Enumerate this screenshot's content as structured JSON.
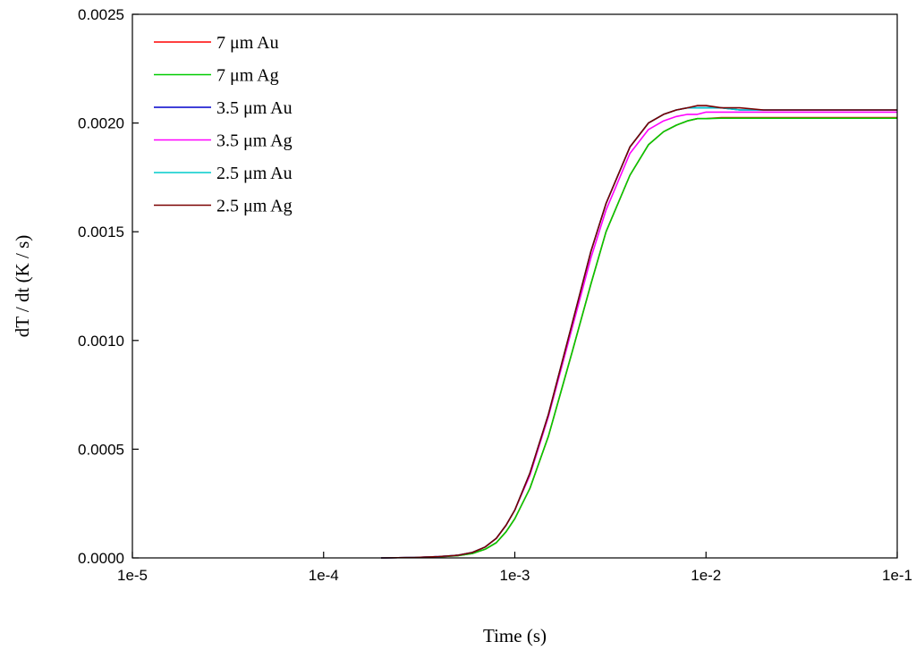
{
  "chart_data": {
    "type": "line",
    "title": "",
    "xlabel": "Time (s)",
    "ylabel": "dT / dt (K / s)",
    "xscale": "log",
    "xlim": [
      1e-05,
      0.1
    ],
    "ylim": [
      0,
      0.0025
    ],
    "x_tick_labels": [
      "1e-5",
      "1e-4",
      "1e-3",
      "1e-2",
      "1e-1"
    ],
    "y_tick_labels": [
      "0.0000",
      "0.0005",
      "0.0010",
      "0.0015",
      "0.0020",
      "0.0025"
    ],
    "grid": false,
    "legend_position": "top-left",
    "x": [
      0.0002,
      0.0003,
      0.0004,
      0.0005,
      0.0006,
      0.0007,
      0.0008,
      0.0009,
      0.001,
      0.0012,
      0.0015,
      0.002,
      0.0025,
      0.003,
      0.004,
      0.005,
      0.006,
      0.007,
      0.008,
      0.009,
      0.01,
      0.012,
      0.015,
      0.02,
      0.03,
      0.05,
      0.07,
      0.1
    ],
    "series": [
      {
        "name": "7 μm  Au",
        "color": "#ff0000",
        "values": [
          0,
          2e-06,
          5e-06,
          1e-05,
          2e-05,
          4e-05,
          7e-05,
          0.00012,
          0.00018,
          0.00032,
          0.00056,
          0.00095,
          0.00126,
          0.0015,
          0.00176,
          0.0019,
          0.00196,
          0.00199,
          0.00201,
          0.00202,
          0.00202,
          0.002025,
          0.002025,
          0.002025,
          0.002025,
          0.002025,
          0.002025,
          0.002025
        ]
      },
      {
        "name": "7 μm  Ag",
        "color": "#00cc00",
        "values": [
          0,
          2e-06,
          5e-06,
          1e-05,
          2e-05,
          4e-05,
          7e-05,
          0.00012,
          0.00018,
          0.00032,
          0.00056,
          0.00095,
          0.00126,
          0.0015,
          0.00176,
          0.0019,
          0.00196,
          0.00199,
          0.00201,
          0.00202,
          0.00202,
          0.002022,
          0.002022,
          0.002022,
          0.002022,
          0.002022,
          0.002022,
          0.002022
        ]
      },
      {
        "name": "3.5 μm  Au",
        "color": "#0000cc",
        "values": [
          0,
          2e-06,
          6e-06,
          1.2e-05,
          2.5e-05,
          5e-05,
          9e-05,
          0.00015,
          0.00022,
          0.00039,
          0.00066,
          0.00108,
          0.00141,
          0.00163,
          0.00189,
          0.002,
          0.00204,
          0.00206,
          0.00207,
          0.00207,
          0.00207,
          0.00207,
          0.00206,
          0.00206,
          0.00206,
          0.00206,
          0.00206,
          0.00206
        ]
      },
      {
        "name": "3.5 μm  Ag",
        "color": "#ff00ff",
        "values": [
          0,
          2e-06,
          6e-06,
          1.2e-05,
          2.5e-05,
          5e-05,
          9e-05,
          0.00015,
          0.00022,
          0.00038,
          0.00065,
          0.00106,
          0.00138,
          0.0016,
          0.00186,
          0.00197,
          0.00201,
          0.00203,
          0.00204,
          0.00204,
          0.00205,
          0.00205,
          0.00205,
          0.00205,
          0.00205,
          0.00205,
          0.00205,
          0.00205
        ]
      },
      {
        "name": "2.5 μm  Au",
        "color": "#00cccc",
        "values": [
          0,
          2e-06,
          6e-06,
          1.2e-05,
          2.5e-05,
          5e-05,
          9e-05,
          0.00015,
          0.00022,
          0.00039,
          0.00066,
          0.00108,
          0.00141,
          0.00163,
          0.00189,
          0.002,
          0.00204,
          0.00206,
          0.00207,
          0.00207,
          0.00207,
          0.00207,
          0.00206,
          0.00206,
          0.00206,
          0.00206,
          0.00206,
          0.00206
        ]
      },
      {
        "name": "2.5 μm  Ag",
        "color": "#7a0000",
        "values": [
          0,
          2e-06,
          6e-06,
          1.2e-05,
          2.5e-05,
          5e-05,
          9e-05,
          0.00015,
          0.00022,
          0.00039,
          0.00066,
          0.00108,
          0.00141,
          0.00163,
          0.00189,
          0.002,
          0.00204,
          0.00206,
          0.00207,
          0.00208,
          0.00208,
          0.00207,
          0.00207,
          0.00206,
          0.00206,
          0.00206,
          0.00206,
          0.00206
        ]
      }
    ]
  }
}
